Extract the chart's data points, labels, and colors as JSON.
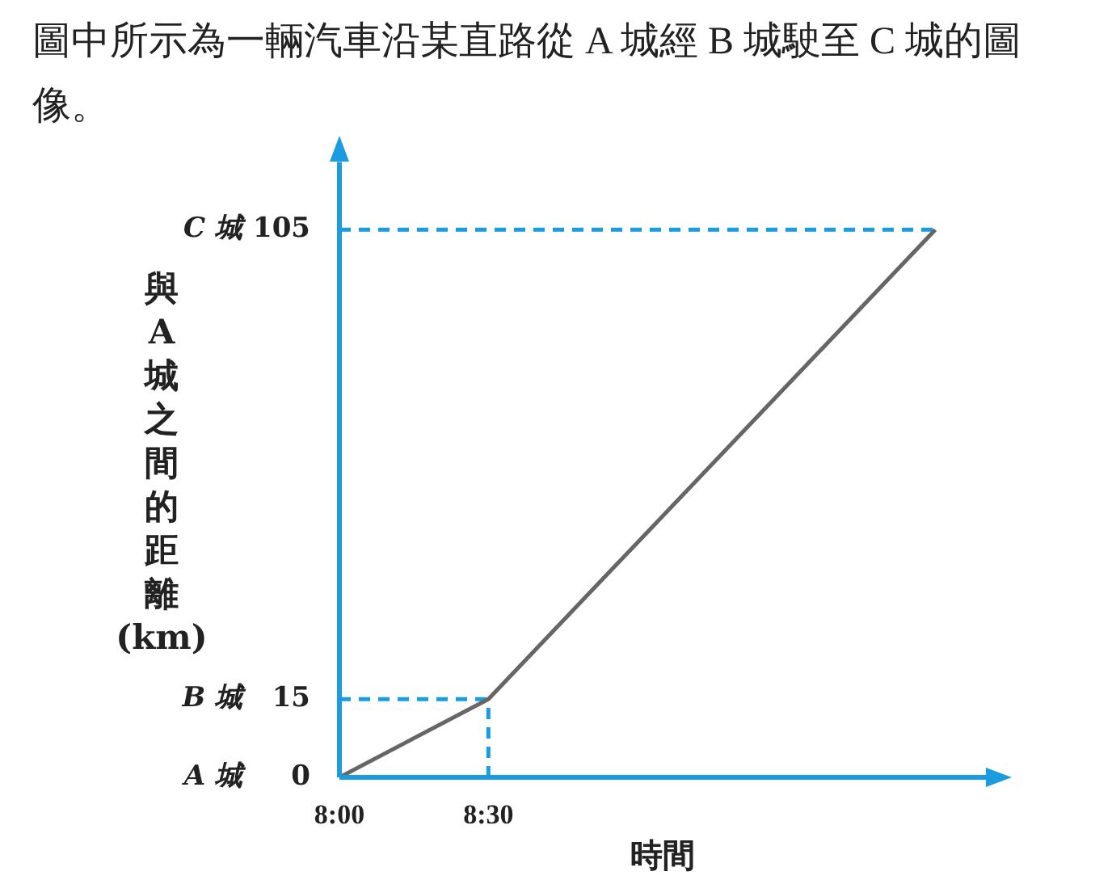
{
  "chart_data": {
    "type": "line",
    "title": "圖中所示為一輛汽車沿某直路從 A 城經 B 城駛至 C 城的圖像。",
    "xlabel": "時間",
    "ylabel": "與A城之間的距離(km)",
    "x": [
      8,
      8.5,
      10
    ],
    "series": [
      {
        "color": "#666666",
        "values": [
          0,
          15,
          105
        ]
      }
    ],
    "xlim": [
      8,
      10.17
    ],
    "xticks": [
      {
        "value": 8,
        "label": "8:00"
      },
      {
        "value": 8.5,
        "label": "8:30"
      }
    ],
    "ylim": [
      0,
      118
    ],
    "yticks": [
      0,
      15,
      105
    ],
    "annotations": [
      "A 城",
      "B 城",
      "C 城"
    ],
    "ref_lines": [
      {
        "axis": "y",
        "value": 15,
        "color": "#1a9de0",
        "line_style": "dashed"
      },
      {
        "axis": "x",
        "value": 8.5,
        "color": "#1a9de0",
        "line_style": "dashed"
      },
      {
        "axis": "y",
        "value": 105,
        "color": "#1a9de0",
        "line_style": "dashed"
      }
    ],
    "grid": false,
    "legend": false,
    "marker": "none",
    "line_style": "solid"
  }
}
